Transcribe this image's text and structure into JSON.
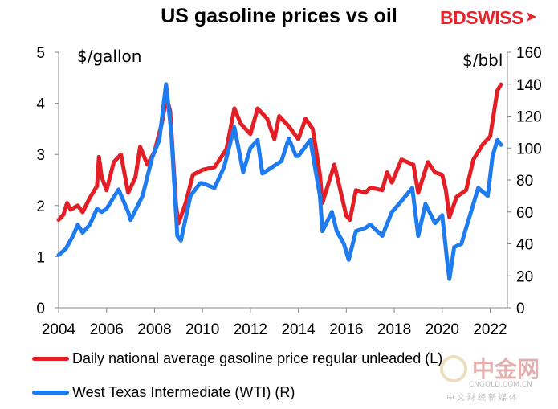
{
  "header": {
    "title": "US gasoline prices vs oil",
    "logo_text": "BDSWISS"
  },
  "units": {
    "left": "$/gallon",
    "right": "$/bbl"
  },
  "legend": [
    {
      "label": "Daily national average gasoline price regular unleaded (L)",
      "color": "#e31e24"
    },
    {
      "label": "West Texas Intermediate (WTI) (R)",
      "color": "#1e7cf0"
    }
  ],
  "watermark": {
    "big": "中金网",
    "url": "CNGOLD.COM.CN",
    "cn": "中文财经新媒体"
  },
  "chart_data": {
    "type": "line",
    "title": "US gasoline prices vs oil",
    "xlabel": "",
    "x_ticks": [
      "2004",
      "2006",
      "2008",
      "2010",
      "2012",
      "2014",
      "2016",
      "2018",
      "2020",
      "2022"
    ],
    "y_left": {
      "label": "$/gallon",
      "lim": [
        0,
        5
      ],
      "ticks": [
        0,
        1,
        2,
        3,
        4,
        5
      ]
    },
    "y_right": {
      "label": "$/bbl",
      "lim": [
        0,
        160
      ],
      "ticks": [
        0,
        20,
        40,
        60,
        80,
        100,
        120,
        140,
        160
      ]
    },
    "grid": false,
    "legend_position": "bottom",
    "series": [
      {
        "name": "Daily national average gasoline price regular unleaded (L)",
        "axis": "left",
        "color": "#e31e24",
        "points": [
          [
            2004.0,
            1.72
          ],
          [
            2004.2,
            1.82
          ],
          [
            2004.35,
            2.05
          ],
          [
            2004.5,
            1.92
          ],
          [
            2004.8,
            2.0
          ],
          [
            2005.0,
            1.87
          ],
          [
            2005.3,
            2.15
          ],
          [
            2005.6,
            2.38
          ],
          [
            2005.68,
            2.95
          ],
          [
            2005.8,
            2.55
          ],
          [
            2006.0,
            2.3
          ],
          [
            2006.3,
            2.85
          ],
          [
            2006.6,
            3.0
          ],
          [
            2006.9,
            2.25
          ],
          [
            2007.2,
            2.55
          ],
          [
            2007.4,
            3.15
          ],
          [
            2007.7,
            2.8
          ],
          [
            2008.0,
            3.05
          ],
          [
            2008.3,
            3.6
          ],
          [
            2008.5,
            4.12
          ],
          [
            2008.65,
            3.85
          ],
          [
            2008.9,
            2.0
          ],
          [
            2009.0,
            1.65
          ],
          [
            2009.3,
            2.05
          ],
          [
            2009.6,
            2.6
          ],
          [
            2010.0,
            2.7
          ],
          [
            2010.5,
            2.75
          ],
          [
            2011.0,
            3.1
          ],
          [
            2011.33,
            3.9
          ],
          [
            2011.6,
            3.6
          ],
          [
            2012.0,
            3.4
          ],
          [
            2012.3,
            3.9
          ],
          [
            2012.7,
            3.7
          ],
          [
            2013.0,
            3.3
          ],
          [
            2013.2,
            3.75
          ],
          [
            2013.6,
            3.55
          ],
          [
            2014.0,
            3.3
          ],
          [
            2014.3,
            3.7
          ],
          [
            2014.6,
            3.5
          ],
          [
            2014.9,
            2.6
          ],
          [
            2015.0,
            2.05
          ],
          [
            2015.3,
            2.5
          ],
          [
            2015.5,
            2.8
          ],
          [
            2015.7,
            2.4
          ],
          [
            2016.0,
            1.8
          ],
          [
            2016.15,
            1.72
          ],
          [
            2016.4,
            2.3
          ],
          [
            2016.8,
            2.25
          ],
          [
            2017.0,
            2.35
          ],
          [
            2017.5,
            2.3
          ],
          [
            2017.7,
            2.65
          ],
          [
            2017.9,
            2.45
          ],
          [
            2018.3,
            2.9
          ],
          [
            2018.8,
            2.8
          ],
          [
            2019.0,
            2.25
          ],
          [
            2019.4,
            2.85
          ],
          [
            2019.7,
            2.65
          ],
          [
            2020.0,
            2.6
          ],
          [
            2020.15,
            2.3
          ],
          [
            2020.3,
            1.77
          ],
          [
            2020.6,
            2.17
          ],
          [
            2021.0,
            2.3
          ],
          [
            2021.3,
            2.9
          ],
          [
            2021.7,
            3.2
          ],
          [
            2022.0,
            3.35
          ],
          [
            2022.3,
            4.25
          ],
          [
            2022.45,
            4.37
          ]
        ]
      },
      {
        "name": "West Texas Intermediate (WTI) (R)",
        "axis": "right",
        "color": "#1e7cf0",
        "points": [
          [
            2004.0,
            33
          ],
          [
            2004.3,
            37
          ],
          [
            2004.6,
            45
          ],
          [
            2004.8,
            52
          ],
          [
            2005.0,
            47
          ],
          [
            2005.3,
            52
          ],
          [
            2005.6,
            62
          ],
          [
            2005.8,
            60
          ],
          [
            2006.0,
            62
          ],
          [
            2006.5,
            74
          ],
          [
            2006.9,
            60
          ],
          [
            2007.0,
            55
          ],
          [
            2007.5,
            70
          ],
          [
            2007.9,
            94
          ],
          [
            2008.2,
            105
          ],
          [
            2008.48,
            140
          ],
          [
            2008.7,
            110
          ],
          [
            2008.95,
            45
          ],
          [
            2009.1,
            42
          ],
          [
            2009.5,
            70
          ],
          [
            2009.9,
            78
          ],
          [
            2010.0,
            78
          ],
          [
            2010.5,
            75
          ],
          [
            2010.9,
            88
          ],
          [
            2011.33,
            113
          ],
          [
            2011.7,
            85
          ],
          [
            2012.0,
            100
          ],
          [
            2012.3,
            105
          ],
          [
            2012.5,
            84
          ],
          [
            2012.9,
            88
          ],
          [
            2013.3,
            92
          ],
          [
            2013.6,
            106
          ],
          [
            2013.9,
            95
          ],
          [
            2014.0,
            95
          ],
          [
            2014.5,
            105
          ],
          [
            2014.9,
            70
          ],
          [
            2015.0,
            48
          ],
          [
            2015.4,
            60
          ],
          [
            2015.6,
            48
          ],
          [
            2015.9,
            40
          ],
          [
            2016.1,
            30
          ],
          [
            2016.4,
            48
          ],
          [
            2016.8,
            50
          ],
          [
            2017.0,
            52
          ],
          [
            2017.5,
            45
          ],
          [
            2017.9,
            60
          ],
          [
            2018.2,
            65
          ],
          [
            2018.75,
            75
          ],
          [
            2019.0,
            45
          ],
          [
            2019.3,
            65
          ],
          [
            2019.7,
            53
          ],
          [
            2020.0,
            58
          ],
          [
            2020.2,
            30
          ],
          [
            2020.3,
            18
          ],
          [
            2020.5,
            38
          ],
          [
            2020.8,
            40
          ],
          [
            2021.0,
            50
          ],
          [
            2021.5,
            75
          ],
          [
            2021.9,
            70
          ],
          [
            2022.1,
            95
          ],
          [
            2022.3,
            105
          ],
          [
            2022.45,
            102
          ]
        ]
      }
    ]
  }
}
